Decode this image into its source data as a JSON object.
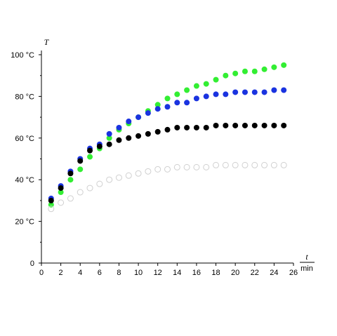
{
  "chart_data": {
    "type": "scatter",
    "title": "",
    "xlabel": "t",
    "xunit": "min",
    "ylabel": "T",
    "xlim": [
      0,
      26
    ],
    "ylim": [
      0,
      100
    ],
    "xticks": [
      "0",
      "2",
      "4",
      "6",
      "8",
      "10",
      "12",
      "14",
      "16",
      "18",
      "20",
      "22",
      "24",
      "26"
    ],
    "yticks": [
      "0",
      "20 °C",
      "40 °C",
      "60 °C",
      "80 °C",
      "100 °C"
    ],
    "grid": false,
    "legend": "none",
    "x": [
      1,
      2,
      3,
      4,
      5,
      6,
      7,
      8,
      9,
      10,
      11,
      12,
      13,
      14,
      15,
      16,
      17,
      18,
      19,
      20,
      21,
      22,
      23,
      24,
      25
    ],
    "series": [
      {
        "color": "#33ee33",
        "marker": "filled",
        "values": [
          28,
          34,
          40,
          45,
          51,
          55,
          60,
          64,
          67,
          70,
          73,
          76,
          79,
          81,
          83,
          85,
          86,
          88,
          90,
          91,
          92,
          92,
          93,
          94,
          95
        ]
      },
      {
        "color": "#1a33e0",
        "marker": "filled",
        "values": [
          31,
          37,
          44,
          50,
          55,
          57,
          62,
          65,
          68,
          70,
          72,
          74,
          75,
          77,
          77,
          79,
          80,
          81,
          81,
          82,
          82,
          82,
          82,
          83,
          83
        ]
      },
      {
        "color": "#000000",
        "marker": "filled",
        "values": [
          30,
          36,
          43,
          49,
          54,
          56,
          57,
          59,
          60,
          61,
          62,
          63,
          64,
          65,
          65,
          65,
          65,
          66,
          66,
          66,
          66,
          66,
          66,
          66,
          66
        ]
      },
      {
        "color": "#d0d0d0",
        "marker": "open",
        "values": [
          26,
          29,
          31,
          34,
          36,
          38,
          40,
          41,
          42,
          43,
          44,
          45,
          45,
          46,
          46,
          46,
          46,
          47,
          47,
          47,
          47,
          47,
          47,
          47,
          47
        ]
      }
    ]
  }
}
